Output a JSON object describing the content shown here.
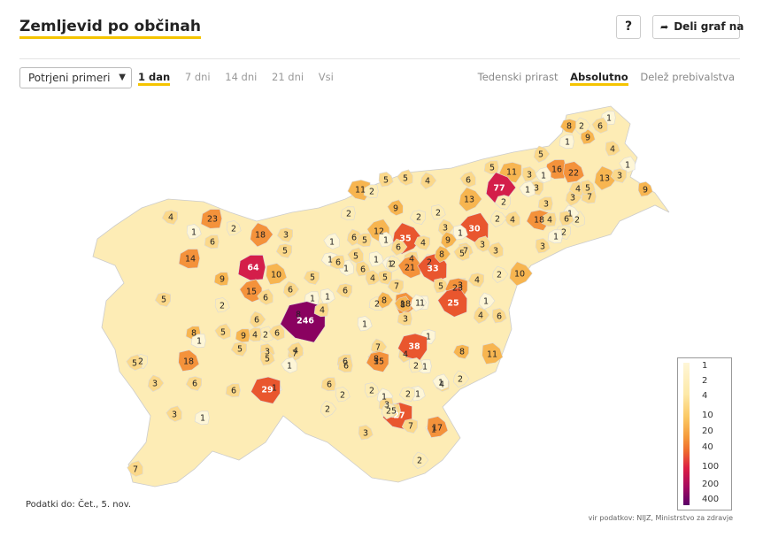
{
  "header": {
    "title": "Zemljevid po občinah",
    "help_label": "?",
    "share_label": "Deli graf na"
  },
  "controls": {
    "measure_select": "Potrjeni primeri",
    "range_tabs": [
      {
        "label": "1 dan",
        "active": true
      },
      {
        "label": "7 dni",
        "active": false
      },
      {
        "label": "14 dni",
        "active": false
      },
      {
        "label": "21 dni",
        "active": false
      },
      {
        "label": "Vsi",
        "active": false
      }
    ],
    "mode_tabs": [
      {
        "label": "Tedenski prirast",
        "active": false
      },
      {
        "label": "Absolutno",
        "active": true
      },
      {
        "label": "Delež prebivalstva",
        "active": false
      }
    ]
  },
  "legend": {
    "labels": [
      "1",
      "2",
      "4",
      "10",
      "20",
      "40",
      "100",
      "200",
      "400"
    ],
    "scale": "log"
  },
  "footer": {
    "date": "Podatki do: Čet., 5. nov.",
    "source": "vir podatkov: NIJZ, Ministrstvo za zdravje"
  },
  "map_data": {
    "colors": {
      "c1": "#fef6d7",
      "c2": "#fdecb5",
      "c4": "#fbd88a",
      "c10": "#f7b550",
      "c20": "#f4923b",
      "c40": "#e9562e",
      "c100": "#d41e4a",
      "c200": "#8a0260",
      "none": "#ffffff"
    },
    "values": [
      "1",
      "9",
      "6",
      "2",
      "8",
      "1",
      "4",
      "1",
      "5",
      "11",
      "16",
      "22",
      "1",
      "13",
      "3",
      "5",
      "3",
      "6",
      "77",
      "3",
      "3",
      "9",
      "1",
      "3",
      "4",
      "7",
      "5",
      "2",
      "1",
      "11",
      "2",
      "5",
      "5",
      "4",
      "18",
      "4",
      "6",
      "4",
      "2",
      "2",
      "1",
      "3",
      "9",
      "13",
      "2",
      "23",
      "2",
      "30",
      "3",
      "2",
      "2",
      "2",
      "12",
      "35",
      "4",
      "4",
      "1",
      "3",
      "18",
      "3",
      "6",
      "1",
      "1",
      "6",
      "1",
      "5",
      "1",
      "1",
      "9",
      "4",
      "14",
      "1",
      "5",
      "6",
      "5",
      "9",
      "6",
      "1",
      "2",
      "6",
      "6",
      "7",
      "21",
      "2",
      "5",
      "64",
      "10",
      "33",
      "8",
      "7",
      "3",
      "4",
      "3",
      "10",
      "4",
      "2",
      "5",
      "15",
      "6",
      "5",
      "1",
      "18",
      "5",
      "2",
      "23",
      "1",
      "6",
      "25",
      "8",
      "8",
      "3",
      "1",
      "6",
      "4",
      "5",
      "8",
      "2",
      "8",
      "1",
      "246",
      "4",
      "1",
      "2",
      "1",
      "2",
      "1",
      "18",
      "5",
      "6",
      "5",
      "4",
      "3",
      "6",
      "7",
      "1",
      "9",
      "5",
      "4",
      "7",
      "8",
      "6",
      "2",
      "8",
      "4",
      "38",
      "6",
      "11",
      "5",
      "3",
      "15",
      "1",
      "2",
      "1",
      "3",
      "6",
      "6",
      "1",
      "4",
      "2",
      "29",
      "6",
      "1",
      "1",
      "1",
      "2",
      "3",
      "2",
      "3",
      "2",
      "27",
      "5",
      "3",
      "1",
      "2",
      "7",
      "1",
      "17",
      "7",
      "2"
    ]
  }
}
